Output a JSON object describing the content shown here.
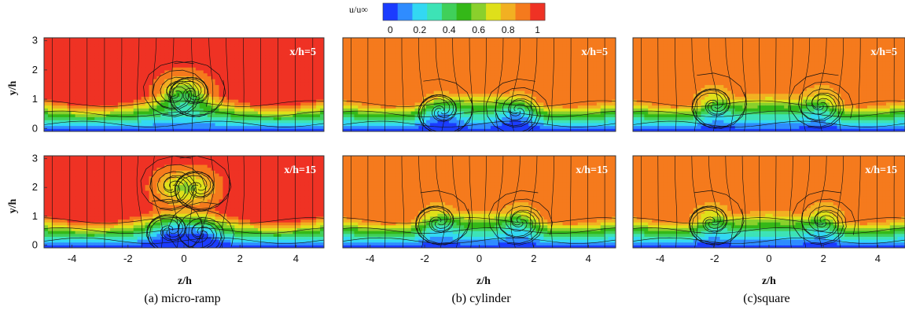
{
  "chart_data": {
    "type": "heatmap",
    "colorbar": {
      "label": "u/u∞",
      "ticks": [
        "0",
        "0.2",
        "0.4",
        "0.6",
        "0.8",
        "1"
      ],
      "range": [
        0,
        1.1
      ],
      "colors": [
        "#1b3cff",
        "#2f8cff",
        "#33d8f2",
        "#3de3b6",
        "#40d05a",
        "#34b818",
        "#8ad02c",
        "#dfe01a",
        "#f2b022",
        "#f57a1d",
        "#ef3224"
      ]
    },
    "x_ticks": [
      -4,
      -2,
      0,
      2,
      4
    ],
    "y_ticks": [
      0,
      1,
      2,
      3
    ],
    "xlim": [
      -5,
      5
    ],
    "ylim": [
      -0.1,
      3.1
    ],
    "xlabel": "z/h",
    "ylabel": "y/h",
    "panels": [
      {
        "case": "micro-ramp",
        "station": "x/h=5",
        "caption": "(a) micro-ramp",
        "freestream": 1.05,
        "vortices": [
          {
            "z": -0.3,
            "y": 1.2,
            "s": -1
          },
          {
            "z": 0.3,
            "y": 1.2,
            "s": 1
          }
        ]
      },
      {
        "case": "micro-ramp",
        "station": "x/h=15",
        "caption": "",
        "freestream": 1.05,
        "vortices": [
          {
            "z": -0.4,
            "y": 2.0,
            "s": -1
          },
          {
            "z": 0.5,
            "y": 2.0,
            "s": 1
          },
          {
            "z": -0.5,
            "y": 0.5,
            "s": 1
          },
          {
            "z": 0.6,
            "y": 0.4,
            "s": -1
          }
        ]
      },
      {
        "case": "cylinder",
        "station": "x/h=5",
        "caption": "(b) cylinder",
        "freestream": 0.97,
        "vortices": [
          {
            "z": -1.4,
            "y": 0.6,
            "s": 1
          },
          {
            "z": 1.4,
            "y": 0.6,
            "s": -1
          }
        ]
      },
      {
        "case": "cylinder",
        "station": "x/h=15",
        "caption": "",
        "freestream": 0.97,
        "vortices": [
          {
            "z": -1.5,
            "y": 0.8,
            "s": 1
          },
          {
            "z": 1.5,
            "y": 0.8,
            "s": -1
          }
        ]
      },
      {
        "case": "square",
        "station": "x/h=5",
        "caption": "(c)square",
        "freestream": 0.97,
        "vortices": [
          {
            "z": -2.0,
            "y": 0.8,
            "s": 1
          },
          {
            "z": 1.9,
            "y": 0.8,
            "s": -1
          }
        ]
      },
      {
        "case": "square",
        "station": "x/h=15",
        "caption": "",
        "freestream": 0.97,
        "vortices": [
          {
            "z": -2.1,
            "y": 0.8,
            "s": 1
          },
          {
            "z": 2.0,
            "y": 0.8,
            "s": -1
          }
        ]
      }
    ]
  }
}
